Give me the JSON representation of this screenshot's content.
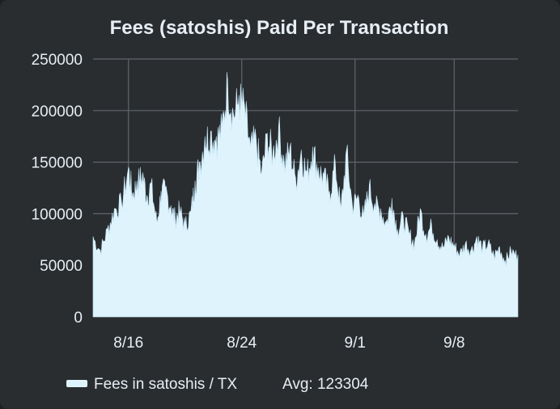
{
  "chart_data": {
    "type": "area",
    "title": "Fees (satoshis) Paid Per Transaction",
    "xlabel": "",
    "ylabel": "",
    "x_ticks": [
      "8/16",
      "8/24",
      "9/1",
      "9/8"
    ],
    "x_tick_days": [
      3,
      11,
      19,
      26
    ],
    "y_ticks": [
      0,
      50000,
      100000,
      150000,
      200000,
      250000
    ],
    "y_tick_labels": [
      "0",
      "50000",
      "100000",
      "150000",
      "200000",
      "250000"
    ],
    "ylim": [
      0,
      250000
    ],
    "xlim_days": [
      0.5,
      30.5
    ],
    "grid": true,
    "legend": {
      "placement": "bottom-left",
      "label": "Fees in satoshis / TX",
      "avg_label": "Avg: 123304"
    },
    "colors": {
      "fill": "#dff3fc",
      "background": "#2a2d30",
      "grid": "#60666c",
      "text": "#e6eef4"
    },
    "series": [
      {
        "name": "Fees in satoshis / TX",
        "day": [
          0.5,
          1.0,
          1.5,
          2.0,
          2.5,
          3.0,
          3.3,
          3.6,
          4.0,
          4.3,
          4.6,
          5.0,
          5.3,
          5.6,
          6.0,
          6.3,
          6.6,
          7.0,
          7.4,
          7.7,
          8.0,
          8.4,
          8.8,
          9.2,
          9.6,
          10.0,
          10.4,
          10.8,
          11.2,
          11.6,
          12.0,
          12.4,
          12.8,
          13.2,
          13.6,
          14.0,
          14.4,
          14.8,
          15.2,
          15.6,
          16.0,
          16.4,
          16.8,
          17.2,
          17.6,
          18.0,
          18.4,
          18.8,
          19.2,
          19.6,
          20.0,
          20.4,
          20.8,
          21.2,
          21.6,
          22.0,
          22.4,
          22.8,
          23.2,
          23.6,
          24.0,
          24.4,
          24.8,
          25.2,
          25.6,
          26.0,
          26.4,
          26.8,
          27.2,
          27.6,
          28.0,
          28.4,
          28.8,
          29.2,
          29.6,
          30.0,
          30.5
        ],
        "values": [
          78000,
          65000,
          85000,
          105000,
          112000,
          145000,
          120000,
          132000,
          140000,
          118000,
          130000,
          92000,
          122000,
          125000,
          108000,
          97000,
          105000,
          90000,
          102000,
          132000,
          150000,
          175000,
          180000,
          175000,
          185000,
          230000,
          198000,
          215000,
          205000,
          165000,
          175000,
          140000,
          178000,
          160000,
          185000,
          150000,
          165000,
          135000,
          162000,
          140000,
          165000,
          145000,
          138000,
          122000,
          150000,
          105000,
          162000,
          110000,
          118000,
          98000,
          128000,
          110000,
          105000,
          92000,
          115000,
          85000,
          98000,
          82000,
          72000,
          105000,
          80000,
          90000,
          75000,
          68000,
          78000,
          70000,
          62000,
          72000,
          65000,
          78000,
          68000,
          72000,
          60000,
          68000,
          55000,
          65000,
          60000
        ]
      }
    ]
  }
}
